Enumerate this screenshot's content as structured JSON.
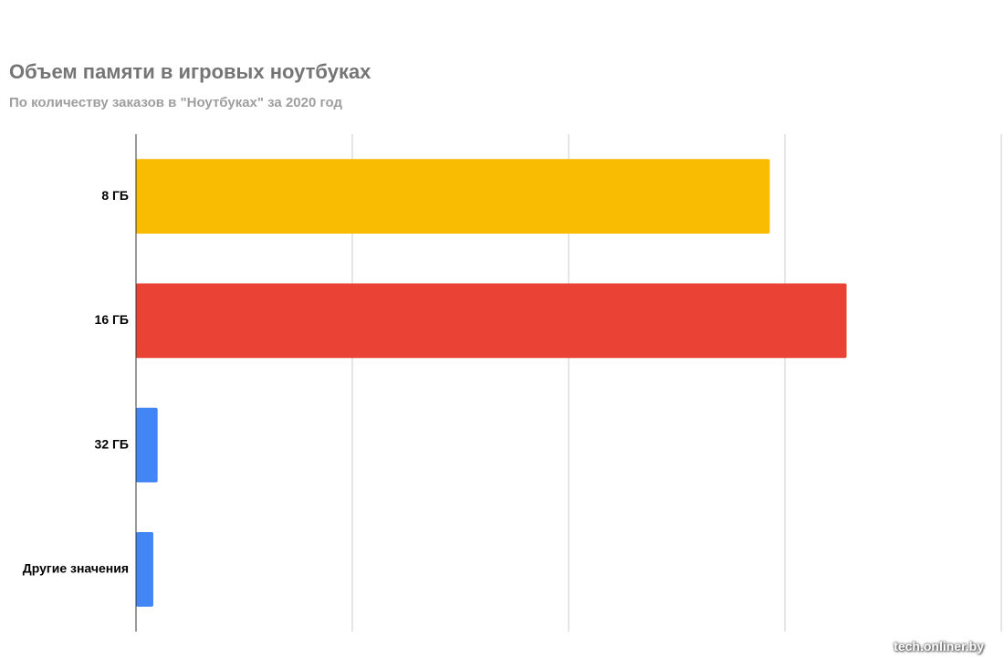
{
  "chart_data": {
    "type": "bar",
    "orientation": "horizontal",
    "title": "Объем памяти в игровых ноутбуках",
    "subtitle": "По количеству заказов в \"Ноутбуках\" за 2020 год",
    "categories": [
      "8 ГБ",
      "16 ГБ",
      "32 ГБ",
      "Другие значения"
    ],
    "values": [
      58.6,
      65.7,
      2.0,
      1.6
    ],
    "colors": [
      "#f9bc02",
      "#ea4335",
      "#4285f4",
      "#4285f4"
    ],
    "xlim": [
      0,
      80
    ],
    "gridlines": [
      20,
      40,
      60,
      80
    ],
    "grid": true,
    "legend": "none",
    "xlabel": "",
    "ylabel": ""
  },
  "watermark": "tech.onliner.by"
}
